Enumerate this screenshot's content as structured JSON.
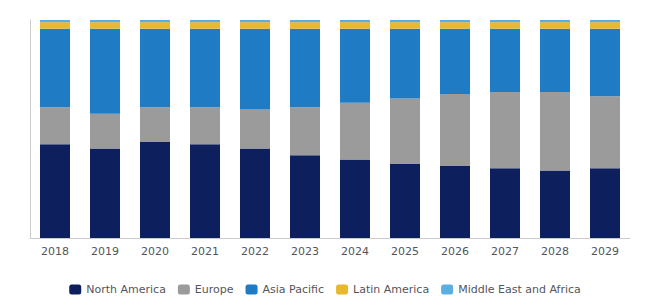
{
  "chart_data": {
    "type": "bar",
    "stacked": true,
    "categories": [
      "2018",
      "2019",
      "2020",
      "2021",
      "2022",
      "2023",
      "2024",
      "2025",
      "2026",
      "2027",
      "2028",
      "2029"
    ],
    "series": [
      {
        "name": "North America",
        "color": "#0d1f5c",
        "values": [
          0.43,
          0.41,
          0.44,
          0.43,
          0.41,
          0.38,
          0.36,
          0.34,
          0.33,
          0.32,
          0.31,
          0.32
        ]
      },
      {
        "name": "Europe",
        "color": "#9b9b9b",
        "values": [
          0.17,
          0.16,
          0.16,
          0.17,
          0.18,
          0.22,
          0.26,
          0.3,
          0.33,
          0.35,
          0.36,
          0.33
        ]
      },
      {
        "name": "Asia Pacific",
        "color": "#1e7bc4",
        "values": [
          0.36,
          0.39,
          0.36,
          0.36,
          0.37,
          0.36,
          0.34,
          0.32,
          0.3,
          0.29,
          0.29,
          0.31
        ]
      },
      {
        "name": "Latin America",
        "color": "#e8b830",
        "values": [
          0.03,
          0.03,
          0.03,
          0.03,
          0.03,
          0.03,
          0.03,
          0.03,
          0.03,
          0.03,
          0.03,
          0.03
        ]
      },
      {
        "name": "Middle East and Africa",
        "color": "#5baee0",
        "values": [
          0.01,
          0.01,
          0.01,
          0.01,
          0.01,
          0.01,
          0.01,
          0.01,
          0.01,
          0.01,
          0.01,
          0.01
        ]
      }
    ],
    "ylim": [
      0,
      1.0
    ],
    "tick_labels": "x",
    "grid": false,
    "legend": "bottom"
  }
}
